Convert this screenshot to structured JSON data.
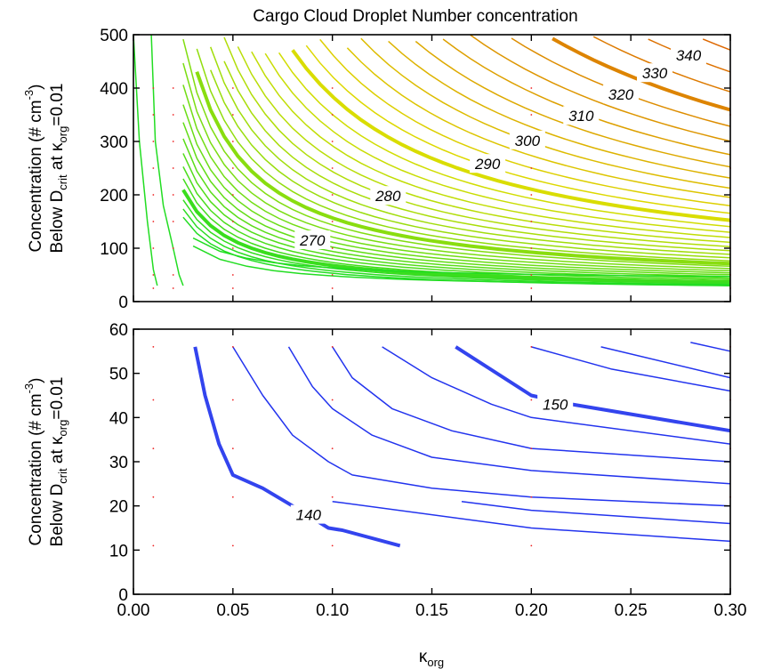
{
  "title": "Cargo Cloud Droplet Number concentration",
  "xlabel": {
    "main": "κ",
    "sub": "org"
  },
  "ylabel": {
    "line1": {
      "text": "Concentration (# cm",
      "sup": "-3",
      "close": ")"
    },
    "line2": {
      "pre": "Below D",
      "sub1": "crit",
      "mid": " at κ",
      "sub2": "org",
      "post": "=0.01"
    }
  },
  "chart_data": [
    {
      "type": "contour",
      "panel": "top",
      "title": "Cargo Cloud Droplet Number concentration",
      "xlabel": "κorg",
      "ylabel": "Concentration (# cm-3) Below Dcrit at κorg=0.01",
      "xlim": [
        0.0,
        0.3
      ],
      "ylim": [
        0,
        500
      ],
      "x_ticks": [
        "0.00",
        "0.05",
        "0.10",
        "0.15",
        "0.20",
        "0.25",
        "0.30"
      ],
      "y_ticks": [
        "0",
        "100",
        "200",
        "300",
        "400",
        "500"
      ],
      "colors": {
        "low": "#22dd22",
        "mid": "#dddd00",
        "high": "#dd0000"
      },
      "contour_interval": 2,
      "labeled_levels": [
        {
          "value": 270,
          "label": "270",
          "at": [
            0.09,
            115
          ]
        },
        {
          "value": 280,
          "label": "280",
          "at": [
            0.128,
            198
          ]
        },
        {
          "value": 290,
          "label": "290",
          "at": [
            0.178,
            258
          ]
        },
        {
          "value": 300,
          "label": "300",
          "at": [
            0.198,
            302
          ]
        },
        {
          "value": 310,
          "label": "310",
          "at": [
            0.225,
            348
          ]
        },
        {
          "value": 320,
          "label": "320",
          "at": [
            0.245,
            388
          ]
        },
        {
          "value": 330,
          "label": "330",
          "at": [
            0.262,
            428
          ]
        },
        {
          "value": 340,
          "label": "340",
          "at": [
            0.279,
            462
          ]
        }
      ],
      "sample_points": {
        "x": [
          0.01,
          0.02,
          0.05,
          0.1,
          0.2,
          0.3
        ],
        "y": [
          25,
          50,
          100,
          150,
          200,
          250,
          300,
          350,
          400
        ]
      }
    },
    {
      "type": "contour",
      "panel": "bottom",
      "xlabel": "κorg",
      "ylabel": "Concentration (# cm-3) Below Dcrit at κorg=0.01",
      "xlim": [
        0.0,
        0.3
      ],
      "ylim": [
        0,
        60
      ],
      "x_ticks": [
        "0.00",
        "0.05",
        "0.10",
        "0.15",
        "0.20",
        "0.25",
        "0.30"
      ],
      "y_ticks": [
        "0",
        "10",
        "20",
        "30",
        "40",
        "50",
        "60"
      ],
      "colors": {
        "line": "#2233ee",
        "major_line": "#3344ee"
      },
      "labeled_levels": [
        {
          "value": 140,
          "label": "140",
          "at": [
            0.088,
            18
          ]
        },
        {
          "value": 150,
          "label": "150",
          "at": [
            0.212,
            43
          ]
        }
      ],
      "sample_points": {
        "x": [
          0.01,
          0.05,
          0.1,
          0.2,
          0.3
        ],
        "y": [
          11,
          22,
          33,
          44,
          56
        ]
      }
    }
  ]
}
